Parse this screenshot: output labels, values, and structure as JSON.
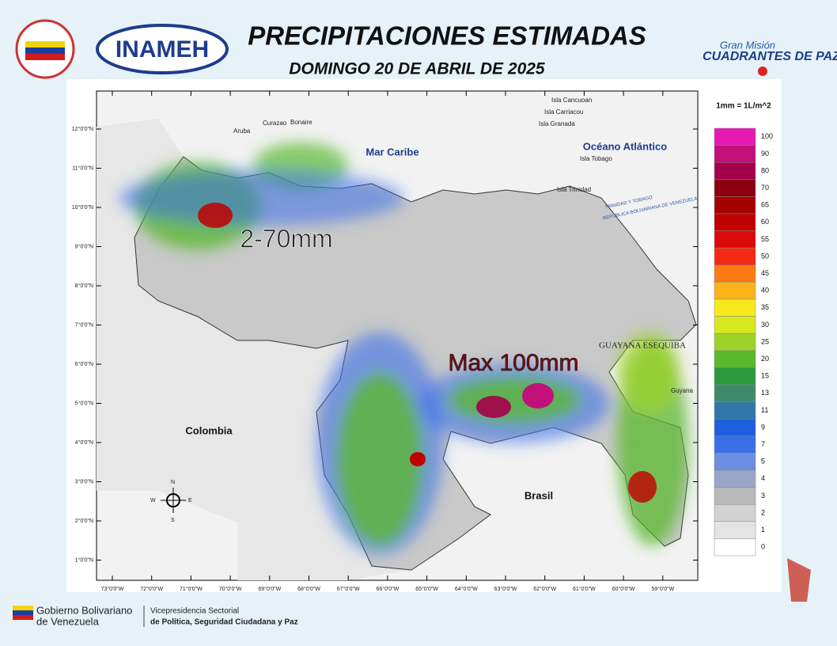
{
  "header": {
    "title": "PRECIPITACIONES ESTIMADAS",
    "subtitle": "DOMINGO 20 DE ABRIL DE 2025",
    "logo_left": "INAMEH",
    "logo_right_top": "Gran Misión",
    "logo_right_bottom": "CUADRANTES DE PAZ"
  },
  "map": {
    "unit": "1mm = 1L/m^2",
    "legend": [
      {
        "label": "100",
        "color": "#e619b4"
      },
      {
        "label": "90",
        "color": "#c0107a"
      },
      {
        "label": "80",
        "color": "#a5004a"
      },
      {
        "label": "70",
        "color": "#8c0010"
      },
      {
        "label": "65",
        "color": "#a30000"
      },
      {
        "label": "60",
        "color": "#c00000"
      },
      {
        "label": "55",
        "color": "#dd0a0a"
      },
      {
        "label": "50",
        "color": "#f52a14"
      },
      {
        "label": "45",
        "color": "#fb7a12"
      },
      {
        "label": "40",
        "color": "#fbb31a"
      },
      {
        "label": "35",
        "color": "#f7ea1c"
      },
      {
        "label": "30",
        "color": "#d7e81e"
      },
      {
        "label": "25",
        "color": "#9fd22a"
      },
      {
        "label": "20",
        "color": "#5ab82e"
      },
      {
        "label": "15",
        "color": "#2c9a3c"
      },
      {
        "label": "13",
        "color": "#3f8a6c"
      },
      {
        "label": "11",
        "color": "#2f77a8"
      },
      {
        "label": "9",
        "color": "#1e5fe0"
      },
      {
        "label": "7",
        "color": "#3a6fea"
      },
      {
        "label": "5",
        "color": "#6d8ee0"
      },
      {
        "label": "4",
        "color": "#9aa6c8"
      },
      {
        "label": "3",
        "color": "#b9b9b9"
      },
      {
        "label": "2",
        "color": "#d2d2d2"
      },
      {
        "label": "1",
        "color": "#e4e4e4"
      },
      {
        "label": "0",
        "color": "#ffffff"
      }
    ],
    "lat_labels": [
      "12°0'0\"N",
      "11°0'0\"N",
      "10°0'0\"N",
      "9°0'0\"N",
      "8°0'0\"N",
      "7°0'0\"N",
      "6°0'0\"N",
      "5°0'0\"N",
      "4°0'0\"N",
      "3°0'0\"N",
      "2°0'0\"N",
      "1°0'0\"N"
    ],
    "lon_labels": [
      "73°0'0\"W",
      "72°0'0\"W",
      "71°0'0\"W",
      "70°0'0\"W",
      "69°0'0\"W",
      "68°0'0\"W",
      "67°0'0\"W",
      "66°0'0\"W",
      "65°0'0\"W",
      "64°0'0\"W",
      "63°0'0\"W",
      "62°0'0\"W",
      "61°0'0\"W",
      "60°0'0\"W",
      "59°0'0\"W"
    ],
    "places": {
      "sea": "Mar Caribe",
      "ocean": "Océano Atlántico",
      "colombia": "Colombia",
      "brasil": "Brasil",
      "esequiba": "GUAYANA ESEQUIBA",
      "guyana": "Guyana",
      "aruba": "Aruba",
      "curazao": "Curazao",
      "bonaire": "Bonaire",
      "cancuoan": "Isla Cancuoan",
      "carriacou": "Isla Carriacou",
      "granada": "Isla Granada",
      "tobago": "Isla Tobago",
      "trinidad": "Isla Trinidad",
      "tt": "TRINIDAD Y TOBAGO",
      "rbv": "REPUBLICA BOLIVARIANA DE VENEZUELA"
    },
    "annotations": {
      "west": "2-70mm",
      "max": "Max 100mm"
    },
    "compass": {
      "n": "N",
      "s": "S",
      "e": "E",
      "w": "W"
    }
  },
  "footer": {
    "gov_1": "Gobierno Bolivariano",
    "gov_2": "de Venezuela",
    "vice_1": "Vicepresidencia Sectorial",
    "vice_2": "de Política, Seguridad Ciudadana y Paz"
  }
}
